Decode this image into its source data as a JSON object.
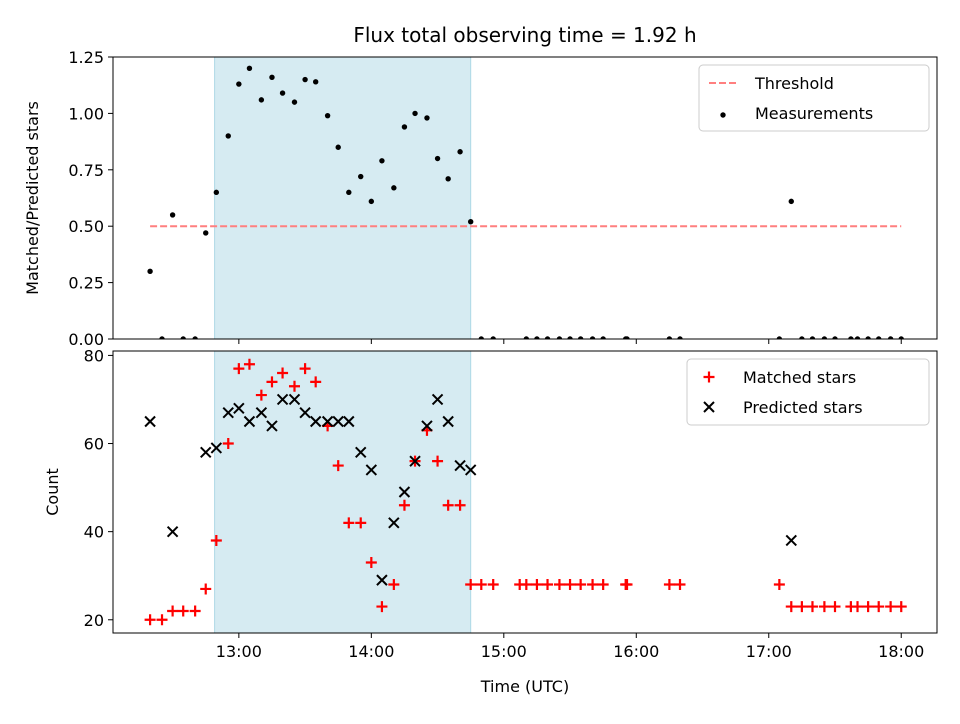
{
  "chart_data": {
    "type": "scatter",
    "title": "Flux total observing time = 1.92 h",
    "xlabel": "Time (UTC)",
    "x_ticks": [
      "13:00",
      "14:00",
      "15:00",
      "16:00",
      "17:00",
      "18:00"
    ],
    "x_tick_hours": [
      13,
      14,
      15,
      16,
      17,
      18
    ],
    "xlim_hours": [
      12.05,
      18.27
    ],
    "shaded_interval_hours": [
      12.817,
      14.75
    ],
    "shade_color": "#add8e6",
    "panels": [
      {
        "ylabel": "Matched/Predicted stars",
        "ylim": [
          0,
          1.25
        ],
        "y_ticks": [
          "0.00",
          "0.25",
          "0.50",
          "0.75",
          "1.00",
          "1.25"
        ],
        "y_tick_values": [
          0,
          0.25,
          0.5,
          0.75,
          1.0,
          1.25
        ],
        "legend": {
          "placement": "top-right",
          "entries": [
            "Threshold",
            "Measurements"
          ]
        },
        "series": [
          {
            "name": "Threshold",
            "kind": "dashed-line",
            "color": "#ff7f7f",
            "points": [
              [
                12.33,
                0.5
              ],
              [
                18.0,
                0.5
              ]
            ]
          },
          {
            "name": "Measurements",
            "kind": "dot",
            "color": "#000000",
            "points": [
              [
                12.33,
                0.3
              ],
              [
                12.42,
                0.0
              ],
              [
                12.5,
                0.55
              ],
              [
                12.58,
                0.0
              ],
              [
                12.67,
                0.0
              ],
              [
                12.75,
                0.47
              ],
              [
                12.83,
                0.65
              ],
              [
                12.92,
                0.9
              ],
              [
                13.0,
                1.13
              ],
              [
                13.08,
                1.2
              ],
              [
                13.17,
                1.06
              ],
              [
                13.25,
                1.16
              ],
              [
                13.33,
                1.09
              ],
              [
                13.42,
                1.05
              ],
              [
                13.5,
                1.15
              ],
              [
                13.58,
                1.14
              ],
              [
                13.67,
                0.99
              ],
              [
                13.75,
                0.85
              ],
              [
                13.83,
                0.65
              ],
              [
                13.92,
                0.72
              ],
              [
                14.0,
                0.61
              ],
              [
                14.08,
                0.79
              ],
              [
                14.17,
                0.67
              ],
              [
                14.25,
                0.94
              ],
              [
                14.33,
                1.0
              ],
              [
                14.42,
                0.98
              ],
              [
                14.5,
                0.8
              ],
              [
                14.58,
                0.71
              ],
              [
                14.67,
                0.83
              ],
              [
                14.75,
                0.52
              ],
              [
                14.83,
                0.0
              ],
              [
                14.92,
                0.0
              ],
              [
                15.17,
                0.0
              ],
              [
                15.25,
                0.0
              ],
              [
                15.33,
                0.0
              ],
              [
                15.42,
                0.0
              ],
              [
                15.5,
                0.0
              ],
              [
                15.58,
                0.0
              ],
              [
                15.67,
                0.0
              ],
              [
                15.75,
                0.0
              ],
              [
                15.92,
                0.0
              ],
              [
                15.93,
                0.0
              ],
              [
                16.25,
                0.0
              ],
              [
                16.33,
                0.0
              ],
              [
                17.08,
                0.0
              ],
              [
                17.17,
                0.61
              ],
              [
                17.25,
                0.0
              ],
              [
                17.33,
                0.0
              ],
              [
                17.42,
                0.0
              ],
              [
                17.5,
                0.0
              ],
              [
                17.62,
                0.0
              ],
              [
                17.67,
                0.0
              ],
              [
                17.75,
                0.0
              ],
              [
                17.83,
                0.0
              ],
              [
                17.92,
                0.0
              ],
              [
                18.0,
                0.0
              ]
            ]
          }
        ]
      },
      {
        "ylabel": "Count",
        "ylim": [
          17,
          81
        ],
        "y_ticks": [
          "20",
          "40",
          "60",
          "80"
        ],
        "y_tick_values": [
          20,
          40,
          60,
          80
        ],
        "legend": {
          "placement": "top-right",
          "entries": [
            "Matched stars",
            "Predicted stars"
          ]
        },
        "series": [
          {
            "name": "Matched stars",
            "kind": "plus",
            "color": "#ff0000",
            "points": [
              [
                12.33,
                20
              ],
              [
                12.42,
                20
              ],
              [
                12.5,
                22
              ],
              [
                12.58,
                22
              ],
              [
                12.67,
                22
              ],
              [
                12.75,
                27
              ],
              [
                12.83,
                38
              ],
              [
                12.92,
                60
              ],
              [
                13.0,
                77
              ],
              [
                13.08,
                78
              ],
              [
                13.17,
                71
              ],
              [
                13.25,
                74
              ],
              [
                13.33,
                76
              ],
              [
                13.42,
                73
              ],
              [
                13.5,
                77
              ],
              [
                13.58,
                74
              ],
              [
                13.67,
                64
              ],
              [
                13.75,
                55
              ],
              [
                13.83,
                42
              ],
              [
                13.92,
                42
              ],
              [
                14.0,
                33
              ],
              [
                14.08,
                23
              ],
              [
                14.17,
                28
              ],
              [
                14.25,
                46
              ],
              [
                14.33,
                56
              ],
              [
                14.42,
                63
              ],
              [
                14.5,
                56
              ],
              [
                14.58,
                46
              ],
              [
                14.67,
                46
              ],
              [
                14.75,
                28
              ],
              [
                14.83,
                28
              ],
              [
                14.92,
                28
              ],
              [
                15.12,
                28
              ],
              [
                15.17,
                28
              ],
              [
                15.25,
                28
              ],
              [
                15.33,
                28
              ],
              [
                15.42,
                28
              ],
              [
                15.5,
                28
              ],
              [
                15.58,
                28
              ],
              [
                15.67,
                28
              ],
              [
                15.75,
                28
              ],
              [
                15.92,
                28
              ],
              [
                15.93,
                28
              ],
              [
                16.25,
                28
              ],
              [
                16.33,
                28
              ],
              [
                17.08,
                28
              ],
              [
                17.17,
                23
              ],
              [
                17.25,
                23
              ],
              [
                17.33,
                23
              ],
              [
                17.42,
                23
              ],
              [
                17.5,
                23
              ],
              [
                17.62,
                23
              ],
              [
                17.67,
                23
              ],
              [
                17.75,
                23
              ],
              [
                17.83,
                23
              ],
              [
                17.92,
                23
              ],
              [
                18.0,
                23
              ]
            ]
          },
          {
            "name": "Predicted stars",
            "kind": "cross",
            "color": "#000000",
            "points": [
              [
                12.33,
                65
              ],
              [
                12.5,
                40
              ],
              [
                12.75,
                58
              ],
              [
                12.83,
                59
              ],
              [
                12.92,
                67
              ],
              [
                13.0,
                68
              ],
              [
                13.08,
                65
              ],
              [
                13.17,
                67
              ],
              [
                13.25,
                64
              ],
              [
                13.33,
                70
              ],
              [
                13.42,
                70
              ],
              [
                13.5,
                67
              ],
              [
                13.58,
                65
              ],
              [
                13.67,
                65
              ],
              [
                13.75,
                65
              ],
              [
                13.83,
                65
              ],
              [
                13.92,
                58
              ],
              [
                14.0,
                54
              ],
              [
                14.08,
                29
              ],
              [
                14.17,
                42
              ],
              [
                14.25,
                49
              ],
              [
                14.33,
                56
              ],
              [
                14.42,
                64
              ],
              [
                14.5,
                70
              ],
              [
                14.58,
                65
              ],
              [
                14.67,
                55
              ],
              [
                14.75,
                54
              ],
              [
                17.17,
                38
              ]
            ]
          }
        ]
      }
    ]
  }
}
